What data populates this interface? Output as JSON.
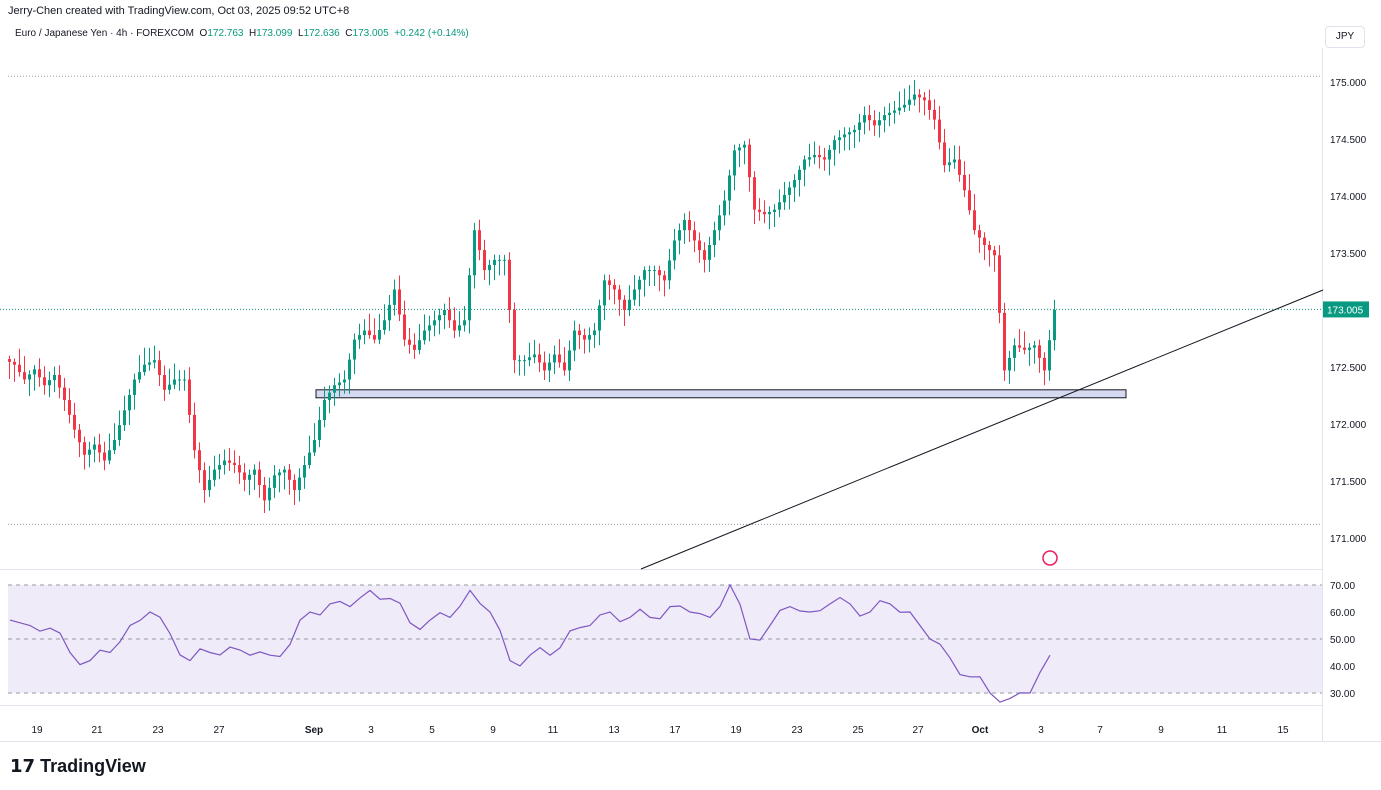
{
  "header": {
    "credit": "Jerry-Chen created with TradingView.com, Oct 03, 2025 09:52 UTC+8",
    "symbol": "Euro / Japanese Yen · 4h · FOREXCOM",
    "o_label": "O",
    "o": "172.763",
    "h_label": "H",
    "h": "173.099",
    "l_label": "L",
    "l": "172.636",
    "c_label": "C",
    "c": "173.005",
    "change": "+0.242 (+0.14%)"
  },
  "currency": "JPY",
  "logo": "TradingView",
  "colors": {
    "up": "#089981",
    "down": "#f23645",
    "rsi": "#7e57c2",
    "zone": "#c5cae9",
    "badge": "#089981"
  },
  "chart_data": {
    "type": "candlestick",
    "price_ticks": [
      "175.000",
      "174.500",
      "174.000",
      "173.500",
      "173.000",
      "172.500",
      "172.000",
      "171.500",
      "171.000"
    ],
    "price_tick_values": [
      175,
      174.5,
      174,
      173.5,
      173,
      172.5,
      172,
      171.5,
      171
    ],
    "ylim": [
      170.96,
      175.58
    ],
    "last_price": "173.005",
    "x_ticks": [
      "19",
      "21",
      "23",
      "27",
      "Sep",
      "3",
      "5",
      "9",
      "11",
      "13",
      "17",
      "19",
      "23",
      "25",
      "27",
      "Oct",
      "3",
      "7",
      "9",
      "11",
      "15"
    ],
    "closes": [
      172.52,
      172.39,
      172.48,
      172.34,
      172.43,
      172.21,
      171.95,
      171.73,
      171.82,
      171.68,
      171.86,
      172.12,
      172.39,
      172.52,
      172.56,
      172.3,
      172.39,
      172.39,
      171.77,
      171.42,
      171.6,
      171.68,
      171.64,
      171.51,
      171.6,
      171.33,
      171.55,
      171.6,
      171.42,
      171.64,
      171.86,
      172.21,
      172.34,
      172.39,
      172.74,
      172.82,
      172.74,
      172.91,
      173.18,
      172.74,
      172.65,
      172.82,
      172.91,
      173.0,
      172.82,
      172.91,
      173.7,
      173.35,
      173.44,
      173.44,
      172.56,
      172.56,
      172.61,
      172.47,
      172.61,
      172.47,
      172.82,
      172.74,
      172.82,
      173.26,
      173.18,
      173.0,
      173.18,
      173.35,
      173.35,
      173.26,
      173.61,
      173.79,
      173.61,
      173.44,
      173.7,
      173.96,
      174.4,
      174.45,
      173.88,
      173.84,
      173.88,
      174.01,
      174.14,
      174.32,
      174.36,
      174.32,
      174.49,
      174.54,
      174.58,
      174.71,
      174.62,
      174.71,
      174.75,
      174.8,
      174.89,
      174.84,
      174.67,
      174.27,
      174.32,
      174.05,
      173.7,
      173.57,
      173.48,
      172.47,
      172.69,
      172.65,
      172.69,
      172.47,
      173.0
    ],
    "support_zone": [
      172.23,
      172.3
    ],
    "period_high": 175.05,
    "period_low": 171.12,
    "rsi": {
      "ticks": [
        "70.00",
        "60.00",
        "50.00",
        "40.00",
        "30.00"
      ],
      "tick_values": [
        70,
        60,
        50,
        40,
        30
      ],
      "ylim": [
        23,
        72
      ],
      "values": [
        57,
        55,
        54,
        45,
        42,
        45,
        55,
        60,
        52,
        42,
        45,
        47,
        44,
        44,
        48,
        60,
        63,
        62,
        68,
        65,
        56,
        57,
        58,
        68,
        60,
        42,
        44,
        44,
        53,
        55,
        60,
        58,
        58,
        62,
        60,
        58,
        70,
        50,
        55,
        62,
        60,
        63,
        63,
        60,
        63,
        60,
        50,
        43,
        36,
        30,
        28,
        30,
        44
      ]
    }
  }
}
